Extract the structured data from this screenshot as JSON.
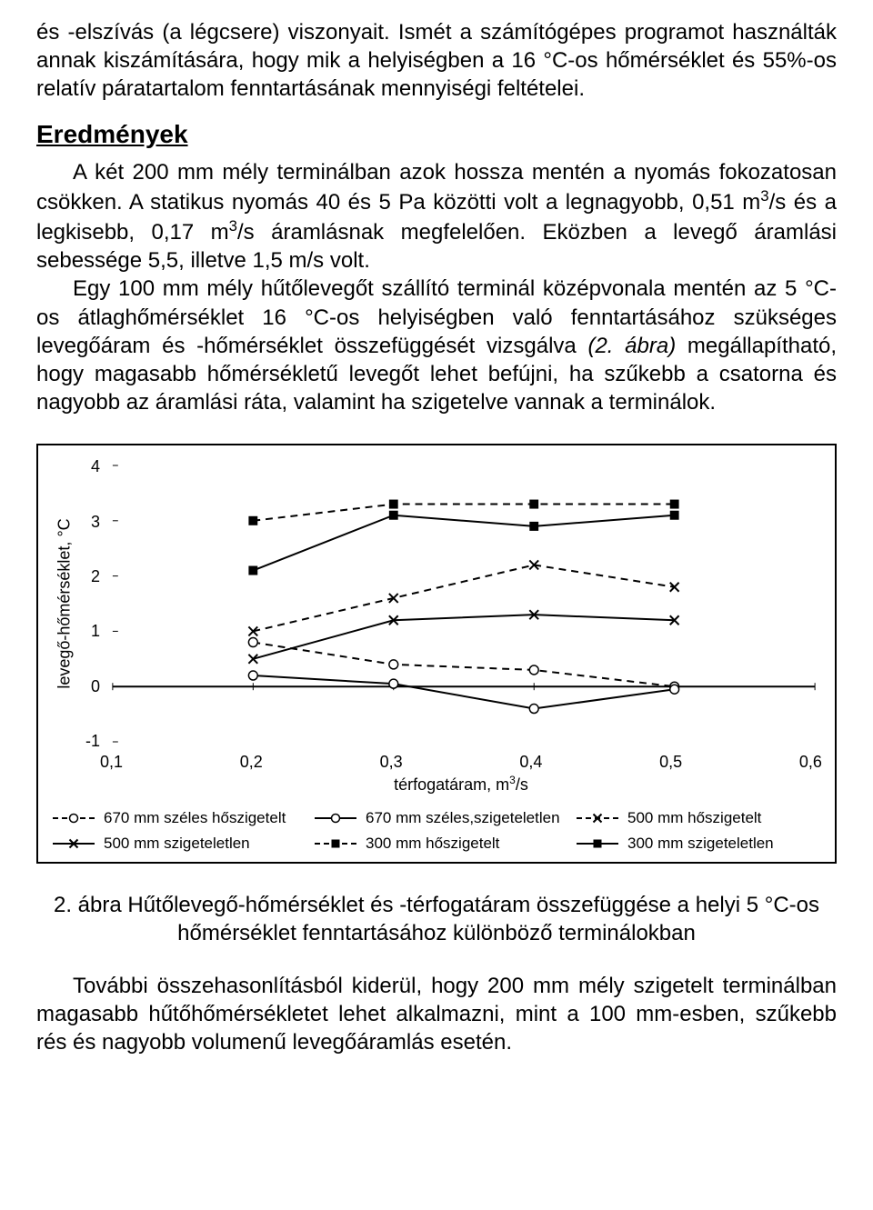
{
  "text": {
    "p1": "és -elszívás (a légcsere) viszonyait. Ismét a számítógépes programot használták annak kiszámítására, hogy mik a helyiségben a 16 °C-os hőmérséklet és 55%-os relatív páratartalom fenntartásának mennyiségi feltételei.",
    "heading": "Eredmények",
    "p2a": "A két 200 mm mély terminálban azok hossza mentén a nyomás fokozatosan csökken. A statikus nyomás 40 és 5 Pa közötti volt a legnagyobb, 0,51 m",
    "p2b": "/s és a legkisebb, 0,17 m",
    "p2c": "/s áramlásnak megfelelően. Eközben a levegő áramlási sebessége 5,5, illetve 1,5 m/s volt.",
    "p3a": "Egy 100 mm mély hűtőlevegőt szállító terminál középvonala mentén az 5 °C-os átlaghőmérséklet 16 °C-os helyiségben való fenntartásához szükséges levegőáram és -hőmérséklet összefüggését vizsgálva ",
    "p3b": "(2. ábra)",
    "p3c": " megállapítható, hogy magasabb hőmérsékletű levegőt lehet befújni, ha szűkebb a csatorna és nagyobb az áramlási ráta, valamint ha szigetelve vannak a terminálok.",
    "caption": "2. ábra Hűtőlevegő-hőmérséklet és -térfogatáram összefüggése a helyi 5 °C-os hőmérséklet fenntartásához különböző terminálokban",
    "p4": "További összehasonlításból kiderül, hogy 200 mm mély szigetelt terminálban magasabb hűtőhőmérsékletet lehet alkalmazni, mint a 100 mm-esben, szűkebb rés és nagyobb volumenű levegőáramlás esetén."
  },
  "chart": {
    "type": "line",
    "ylabel": "levegő-hőmérséklet, °C",
    "xlabel_a": "térfogatáram, m",
    "xlabel_b": "/s",
    "xlim": [
      0.1,
      0.6
    ],
    "ylim": [
      -1,
      4
    ],
    "xticks": [
      "0,1",
      "0,2",
      "0,3",
      "0,4",
      "0,5",
      "0,6"
    ],
    "yticks": [
      "4",
      "3",
      "2",
      "1",
      "0",
      "-1"
    ],
    "background_color": "#ffffff",
    "axis_color": "#000000",
    "grid_on": false,
    "font_size": 18,
    "marker_size": 7,
    "line_width": 2,
    "series": [
      {
        "name": "670 mm széles hőszigetelt",
        "marker": "circle-open",
        "dash": "dashed",
        "color": "#000000",
        "x": [
          0.2,
          0.3,
          0.4,
          0.5
        ],
        "y": [
          0.8,
          0.4,
          0.3,
          0.0
        ]
      },
      {
        "name": "670 mm széles,szigeteletlen",
        "marker": "circle-open",
        "dash": "solid",
        "color": "#000000",
        "x": [
          0.2,
          0.3,
          0.4,
          0.5
        ],
        "y": [
          0.2,
          0.05,
          -0.4,
          -0.05
        ]
      },
      {
        "name": "500 mm hőszigetelt",
        "marker": "x",
        "dash": "dashed",
        "color": "#000000",
        "x": [
          0.2,
          0.3,
          0.4,
          0.5
        ],
        "y": [
          1.0,
          1.6,
          2.2,
          1.8
        ]
      },
      {
        "name": "500 mm szigeteletlen",
        "marker": "x",
        "dash": "solid",
        "color": "#000000",
        "x": [
          0.2,
          0.3,
          0.4,
          0.5
        ],
        "y": [
          0.5,
          1.2,
          1.3,
          1.2
        ]
      },
      {
        "name": "300 mm hőszigetelt",
        "marker": "square-filled",
        "dash": "dashed",
        "color": "#000000",
        "x": [
          0.2,
          0.3,
          0.4,
          0.5
        ],
        "y": [
          3.0,
          3.3,
          3.3,
          3.3
        ]
      },
      {
        "name": "300 mm szigeteletlen",
        "marker": "square-filled",
        "dash": "solid",
        "color": "#000000",
        "x": [
          0.2,
          0.3,
          0.4,
          0.5
        ],
        "y": [
          2.1,
          3.1,
          2.9,
          3.1
        ]
      }
    ]
  }
}
